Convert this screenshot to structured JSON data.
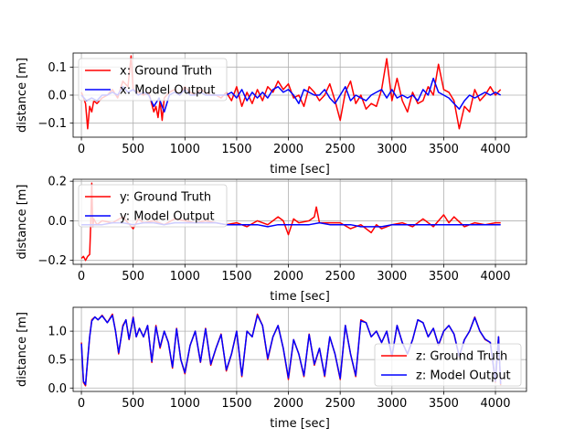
{
  "chart_data": [
    {
      "type": "line",
      "xlabel": "time [sec]",
      "ylabel": "distance [m]",
      "xlim": [
        -80,
        4300
      ],
      "ylim": [
        -0.15,
        0.15
      ],
      "x_ticks": [
        0,
        500,
        1000,
        1500,
        2000,
        2500,
        3000,
        3500,
        4000
      ],
      "x_tick_labels": [
        "0",
        "500",
        "1000",
        "1500",
        "2000",
        "2500",
        "3000",
        "3500",
        "4000"
      ],
      "y_ticks": [
        -0.1,
        0.0,
        0.1
      ],
      "y_tick_labels": [
        "−0.1",
        "0.0",
        "0.1"
      ],
      "grid": true,
      "legend_position": "upper-left",
      "series": [
        {
          "name": "x: Ground Truth",
          "color": "#ff0000",
          "x": [
            0,
            40,
            60,
            80,
            100,
            120,
            150,
            200,
            250,
            300,
            350,
            400,
            450,
            480,
            500,
            550,
            600,
            650,
            700,
            720,
            740,
            760,
            780,
            800,
            850,
            900,
            950,
            1000,
            1050,
            1100,
            1150,
            1200,
            1250,
            1300,
            1350,
            1400,
            1450,
            1500,
            1550,
            1600,
            1650,
            1700,
            1750,
            1800,
            1850,
            1900,
            1950,
            2000,
            2050,
            2100,
            2150,
            2200,
            2250,
            2300,
            2350,
            2400,
            2450,
            2500,
            2550,
            2600,
            2650,
            2700,
            2750,
            2800,
            2850,
            2900,
            2950,
            3000,
            3050,
            3100,
            3150,
            3200,
            3250,
            3300,
            3350,
            3400,
            3450,
            3500,
            3550,
            3600,
            3650,
            3700,
            3750,
            3800,
            3850,
            3900,
            3950,
            4000,
            4050
          ],
          "y": [
            0.01,
            -0.03,
            -0.12,
            -0.04,
            -0.06,
            -0.02,
            -0.03,
            -0.01,
            0.0,
            0.02,
            -0.01,
            0.05,
            0.03,
            0.14,
            0.02,
            0.01,
            0.0,
            0.01,
            -0.06,
            -0.04,
            -0.08,
            -0.02,
            -0.09,
            -0.01,
            0.01,
            0.02,
            0.0,
            0.03,
            0.01,
            0.0,
            0.02,
            0.01,
            0.0,
            0.0,
            -0.01,
            0.01,
            -0.02,
            0.03,
            -0.04,
            0.01,
            -0.03,
            0.02,
            -0.02,
            0.03,
            0.01,
            0.05,
            0.02,
            0.04,
            -0.01,
            0.0,
            -0.04,
            0.03,
            0.01,
            -0.02,
            0.0,
            0.04,
            -0.02,
            -0.09,
            0.01,
            0.05,
            -0.03,
            0.0,
            -0.05,
            -0.03,
            -0.04,
            0.02,
            0.13,
            -0.02,
            0.06,
            -0.02,
            -0.06,
            0.01,
            -0.03,
            -0.02,
            0.03,
            0.0,
            0.11,
            0.02,
            0.01,
            -0.02,
            -0.12,
            -0.04,
            -0.06,
            0.02,
            -0.02,
            0.0,
            0.03,
            0.0,
            0.02
          ]
        },
        {
          "name": "x: Model Output",
          "color": "#0000ff",
          "x": [
            0,
            50,
            100,
            150,
            200,
            250,
            300,
            350,
            400,
            450,
            500,
            550,
            600,
            650,
            700,
            750,
            800,
            850,
            900,
            950,
            1000,
            1050,
            1100,
            1150,
            1200,
            1250,
            1300,
            1350,
            1400,
            1450,
            1500,
            1550,
            1600,
            1650,
            1700,
            1750,
            1800,
            1850,
            1900,
            1950,
            2000,
            2050,
            2100,
            2150,
            2200,
            2250,
            2300,
            2350,
            2400,
            2450,
            2500,
            2550,
            2600,
            2650,
            2700,
            2750,
            2800,
            2850,
            2900,
            2950,
            3000,
            3050,
            3100,
            3150,
            3200,
            3250,
            3300,
            3350,
            3400,
            3450,
            3500,
            3550,
            3600,
            3650,
            3700,
            3750,
            3800,
            3850,
            3900,
            3950,
            4000,
            4050
          ],
          "y": [
            0.0,
            -0.02,
            -0.01,
            -0.02,
            0.0,
            0.0,
            0.01,
            0.0,
            0.03,
            0.01,
            0.02,
            0.0,
            0.01,
            0.0,
            -0.04,
            -0.01,
            -0.06,
            0.0,
            0.01,
            0.0,
            0.02,
            0.0,
            0.0,
            0.01,
            0.0,
            0.0,
            0.0,
            0.0,
            0.0,
            0.01,
            -0.01,
            0.02,
            -0.02,
            0.01,
            -0.01,
            0.01,
            -0.01,
            0.02,
            0.03,
            0.01,
            0.02,
            0.0,
            -0.03,
            0.02,
            0.01,
            0.0,
            0.0,
            0.02,
            -0.01,
            -0.03,
            0.0,
            0.03,
            -0.02,
            0.0,
            -0.01,
            -0.02,
            0.0,
            0.01,
            0.02,
            -0.01,
            0.02,
            -0.01,
            0.0,
            -0.01,
            0.0,
            -0.02,
            0.02,
            0.0,
            0.06,
            0.01,
            0.0,
            -0.01,
            -0.03,
            -0.05,
            -0.02,
            0.0,
            -0.01,
            0.0,
            0.01,
            0.0,
            0.01,
            0.0
          ]
        }
      ]
    },
    {
      "type": "line",
      "xlabel": "time [sec]",
      "ylabel": "distance [m]",
      "xlim": [
        -80,
        4300
      ],
      "ylim": [
        -0.22,
        0.21
      ],
      "x_ticks": [
        0,
        500,
        1000,
        1500,
        2000,
        2500,
        3000,
        3500,
        4000
      ],
      "x_tick_labels": [
        "0",
        "500",
        "1000",
        "1500",
        "2000",
        "2500",
        "3000",
        "3500",
        "4000"
      ],
      "y_ticks": [
        -0.2,
        0.0,
        0.2
      ],
      "y_tick_labels": [
        "−0.2",
        "0.0",
        "0.2"
      ],
      "grid": true,
      "legend_position": "upper-left",
      "series": [
        {
          "name": "y: Ground Truth",
          "color": "#ff0000",
          "x": [
            0,
            20,
            40,
            60,
            80,
            90,
            100,
            110,
            120,
            150,
            200,
            300,
            400,
            500,
            550,
            600,
            700,
            800,
            900,
            1000,
            1100,
            1200,
            1300,
            1400,
            1500,
            1600,
            1700,
            1800,
            1900,
            1950,
            2000,
            2050,
            2100,
            2200,
            2250,
            2270,
            2300,
            2400,
            2500,
            2600,
            2700,
            2800,
            2850,
            2900,
            3000,
            3100,
            3200,
            3300,
            3400,
            3500,
            3550,
            3600,
            3700,
            3800,
            3900,
            4000,
            4050
          ],
          "y": [
            -0.19,
            -0.18,
            -0.2,
            -0.18,
            -0.17,
            -0.01,
            0.19,
            -0.03,
            0.01,
            -0.02,
            0.0,
            -0.01,
            0.02,
            -0.04,
            0.01,
            -0.01,
            0.0,
            -0.02,
            0.01,
            0.0,
            -0.01,
            0.0,
            -0.01,
            -0.02,
            -0.01,
            -0.03,
            0.0,
            -0.02,
            0.02,
            0.0,
            -0.07,
            0.01,
            -0.01,
            0.0,
            0.02,
            0.07,
            -0.01,
            -0.01,
            -0.01,
            -0.04,
            -0.02,
            -0.06,
            -0.02,
            -0.04,
            -0.02,
            -0.01,
            -0.03,
            0.01,
            -0.03,
            0.03,
            -0.01,
            0.02,
            -0.03,
            -0.01,
            -0.02,
            -0.01,
            -0.01
          ]
        },
        {
          "name": "y: Model Output",
          "color": "#0000ff",
          "x": [
            0,
            100,
            200,
            300,
            400,
            500,
            600,
            700,
            800,
            900,
            1000,
            1100,
            1200,
            1300,
            1400,
            1500,
            1600,
            1700,
            1800,
            1900,
            2000,
            2100,
            2200,
            2300,
            2400,
            2500,
            2600,
            2700,
            2800,
            2900,
            3000,
            3100,
            3200,
            3300,
            3400,
            3500,
            3600,
            3700,
            3800,
            3900,
            4000,
            4050
          ],
          "y": [
            -0.02,
            -0.02,
            -0.02,
            -0.01,
            -0.01,
            -0.02,
            -0.01,
            -0.01,
            -0.02,
            -0.01,
            -0.01,
            -0.01,
            -0.01,
            -0.01,
            -0.02,
            -0.02,
            -0.02,
            -0.02,
            -0.03,
            -0.02,
            -0.02,
            -0.02,
            -0.02,
            -0.01,
            -0.02,
            -0.02,
            -0.02,
            -0.03,
            -0.03,
            -0.03,
            -0.02,
            -0.02,
            -0.02,
            -0.02,
            -0.02,
            -0.02,
            -0.02,
            -0.02,
            -0.02,
            -0.02,
            -0.02,
            -0.02
          ]
        }
      ]
    },
    {
      "type": "line",
      "xlabel": "time [sec]",
      "ylabel": "distance [m]",
      "xlim": [
        -80,
        4300
      ],
      "ylim": [
        -0.06,
        1.42
      ],
      "x_ticks": [
        0,
        500,
        1000,
        1500,
        2000,
        2500,
        3000,
        3500,
        4000
      ],
      "x_tick_labels": [
        "0",
        "500",
        "1000",
        "1500",
        "2000",
        "2500",
        "3000",
        "3500",
        "4000"
      ],
      "y_ticks": [
        0.0,
        0.5,
        1.0
      ],
      "y_tick_labels": [
        "0.0",
        "0.5",
        "1.0"
      ],
      "grid": true,
      "legend_position": "lower-right",
      "series": [
        {
          "name": "z: Ground Truth",
          "color": "#ff0000",
          "x": [
            0,
            20,
            40,
            60,
            80,
            100,
            130,
            160,
            200,
            250,
            300,
            330,
            360,
            400,
            430,
            460,
            500,
            530,
            560,
            600,
            640,
            680,
            720,
            760,
            800,
            840,
            880,
            920,
            960,
            1000,
            1050,
            1100,
            1150,
            1200,
            1250,
            1300,
            1350,
            1400,
            1450,
            1500,
            1550,
            1600,
            1650,
            1700,
            1750,
            1800,
            1850,
            1900,
            1950,
            2000,
            2050,
            2100,
            2150,
            2200,
            2250,
            2300,
            2350,
            2400,
            2450,
            2500,
            2550,
            2600,
            2650,
            2700,
            2750,
            2800,
            2850,
            2900,
            2950,
            3000,
            3050,
            3100,
            3150,
            3200,
            3250,
            3300,
            3350,
            3400,
            3450,
            3500,
            3550,
            3600,
            3650,
            3700,
            3750,
            3800,
            3850,
            3900,
            3950,
            4000,
            4030,
            4050
          ],
          "y": [
            0.8,
            0.1,
            0.04,
            0.5,
            0.9,
            1.2,
            1.25,
            1.2,
            1.28,
            1.15,
            1.3,
            1.0,
            0.6,
            1.1,
            1.2,
            0.85,
            1.25,
            0.9,
            1.05,
            0.9,
            1.1,
            0.45,
            1.1,
            0.7,
            1.0,
            0.8,
            0.35,
            1.05,
            0.5,
            0.25,
            0.75,
            1.0,
            0.45,
            1.05,
            0.4,
            0.7,
            0.95,
            0.3,
            0.6,
            1.0,
            0.2,
            1.0,
            0.9,
            1.3,
            1.1,
            0.5,
            0.9,
            1.1,
            0.7,
            0.15,
            0.85,
            0.6,
            0.2,
            0.95,
            0.4,
            0.7,
            0.2,
            0.9,
            0.6,
            0.15,
            1.1,
            0.6,
            0.2,
            1.2,
            1.15,
            0.9,
            1.0,
            0.8,
            1.0,
            0.55,
            1.1,
            0.8,
            0.6,
            0.85,
            1.2,
            1.15,
            0.9,
            1.05,
            0.75,
            1.0,
            1.1,
            0.95,
            0.55,
            0.85,
            1.0,
            1.25,
            1.0,
            0.85,
            0.8,
            0.1,
            0.9,
            0.05
          ]
        },
        {
          "name": "z: Model Output",
          "color": "#0000ff",
          "x": [
            0,
            20,
            40,
            60,
            80,
            100,
            130,
            160,
            200,
            250,
            300,
            330,
            360,
            400,
            430,
            460,
            500,
            530,
            560,
            600,
            640,
            680,
            720,
            760,
            800,
            840,
            880,
            920,
            960,
            1000,
            1050,
            1100,
            1150,
            1200,
            1250,
            1300,
            1350,
            1400,
            1450,
            1500,
            1550,
            1600,
            1650,
            1700,
            1750,
            1800,
            1850,
            1900,
            1950,
            2000,
            2050,
            2100,
            2150,
            2200,
            2250,
            2300,
            2350,
            2400,
            2450,
            2500,
            2550,
            2600,
            2650,
            2700,
            2750,
            2800,
            2850,
            2900,
            2950,
            3000,
            3050,
            3100,
            3150,
            3200,
            3250,
            3300,
            3350,
            3400,
            3450,
            3500,
            3550,
            3600,
            3650,
            3700,
            3750,
            3800,
            3850,
            3900,
            3950,
            4000,
            4030,
            4050
          ],
          "y": [
            0.78,
            0.12,
            0.06,
            0.5,
            0.9,
            1.18,
            1.25,
            1.2,
            1.27,
            1.15,
            1.28,
            1.0,
            0.62,
            1.08,
            1.2,
            0.86,
            1.24,
            0.9,
            1.05,
            0.9,
            1.1,
            0.47,
            1.08,
            0.72,
            1.0,
            0.8,
            0.37,
            1.04,
            0.5,
            0.27,
            0.75,
            1.0,
            0.46,
            1.04,
            0.42,
            0.7,
            0.94,
            0.32,
            0.6,
            1.0,
            0.22,
            1.0,
            0.9,
            1.28,
            1.1,
            0.52,
            0.9,
            1.1,
            0.7,
            0.18,
            0.85,
            0.6,
            0.22,
            0.94,
            0.42,
            0.7,
            0.22,
            0.9,
            0.6,
            0.17,
            1.1,
            0.6,
            0.22,
            1.18,
            1.15,
            0.9,
            1.0,
            0.8,
            1.0,
            0.56,
            1.1,
            0.8,
            0.6,
            0.85,
            1.2,
            1.15,
            0.9,
            1.05,
            0.76,
            1.0,
            1.1,
            0.95,
            0.56,
            0.85,
            1.0,
            1.24,
            1.0,
            0.86,
            0.8,
            0.12,
            0.9,
            0.07
          ]
        }
      ]
    }
  ]
}
